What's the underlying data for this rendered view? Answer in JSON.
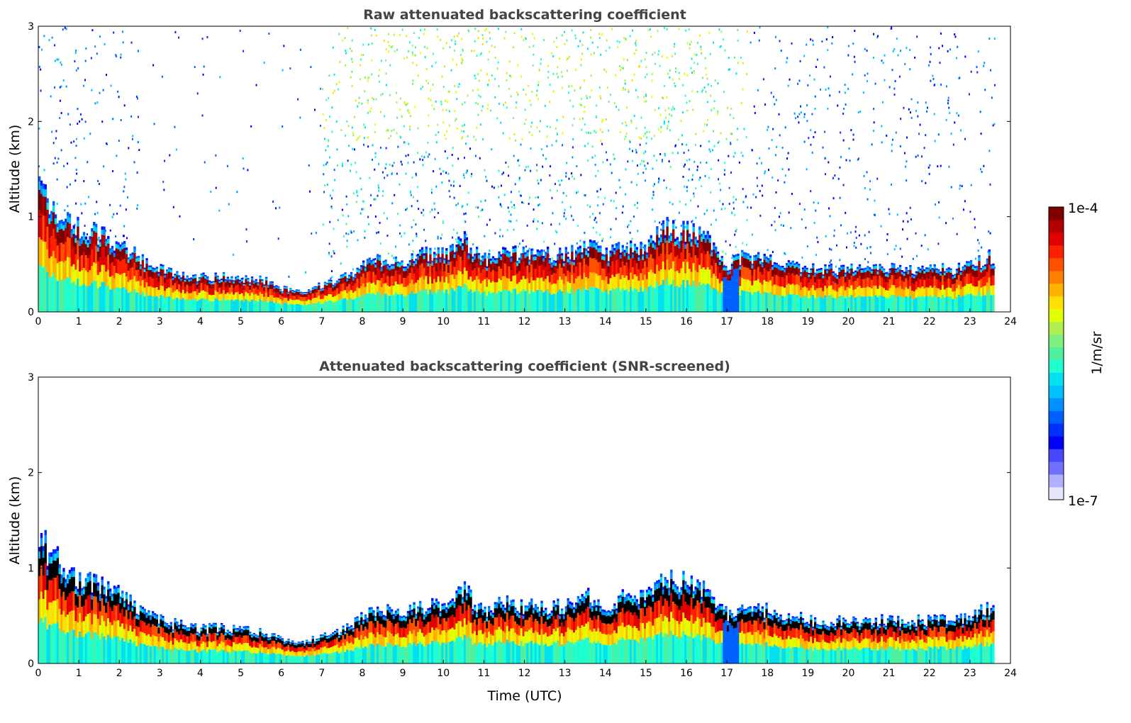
{
  "chart_data": [
    {
      "type": "heatmap",
      "title": "Raw attenuated backscattering coefficient",
      "xlabel": "",
      "ylabel": "Altitude (km)",
      "xlim": [
        0,
        24
      ],
      "ylim": [
        0,
        3
      ],
      "xticks": [
        "0",
        "1",
        "2",
        "3",
        "4",
        "5",
        "6",
        "7",
        "8",
        "9",
        "10",
        "11",
        "12",
        "13",
        "14",
        "15",
        "16",
        "17",
        "18",
        "19",
        "20",
        "21",
        "22",
        "23",
        "24"
      ],
      "yticks": [
        "0",
        "1",
        "2",
        "3"
      ],
      "screened": false
    },
    {
      "type": "heatmap",
      "title": "Attenuated backscattering coefficient (SNR-screened)",
      "xlabel": "Time (UTC)",
      "ylabel": "Altitude (km)",
      "xlim": [
        0,
        24
      ],
      "ylim": [
        0,
        3
      ],
      "xticks": [
        "0",
        "1",
        "2",
        "3",
        "4",
        "5",
        "6",
        "7",
        "8",
        "9",
        "10",
        "11",
        "12",
        "13",
        "14",
        "15",
        "16",
        "17",
        "18",
        "19",
        "20",
        "21",
        "22",
        "23",
        "24"
      ],
      "yticks": [
        "0",
        "1",
        "2",
        "3"
      ],
      "screened": true
    }
  ],
  "layer_profile": {
    "time_utc": [
      0,
      0.3,
      0.5,
      1,
      1.5,
      2,
      2.5,
      3,
      3.5,
      4,
      4.5,
      5,
      5.5,
      6,
      6.5,
      7,
      7.5,
      8,
      8.5,
      9,
      9.5,
      10,
      10.5,
      11,
      11.5,
      12,
      12.5,
      13,
      13.5,
      14,
      14.5,
      15,
      15.5,
      16,
      16.5,
      17,
      17.5,
      18,
      18.5,
      19,
      19.5,
      20,
      20.5,
      21,
      21.5,
      22,
      22.5,
      23,
      23.6
    ],
    "layer_top_km": [
      1.3,
      1.15,
      1.05,
      0.9,
      0.8,
      0.72,
      0.55,
      0.45,
      0.4,
      0.36,
      0.38,
      0.36,
      0.34,
      0.25,
      0.22,
      0.28,
      0.35,
      0.5,
      0.55,
      0.55,
      0.6,
      0.6,
      0.75,
      0.55,
      0.65,
      0.6,
      0.6,
      0.6,
      0.7,
      0.6,
      0.7,
      0.7,
      0.9,
      0.85,
      0.75,
      0.5,
      0.6,
      0.55,
      0.5,
      0.45,
      0.45,
      0.45,
      0.45,
      0.45,
      0.45,
      0.45,
      0.45,
      0.5,
      0.6
    ],
    "data_end_utc": 23.6
  },
  "colorbar": {
    "label": "1/m/sr",
    "max_label": "1e-4",
    "min_label": "1e-7",
    "colors": [
      "#e6e6fa",
      "#b0b0ff",
      "#7070ff",
      "#4848ff",
      "#0000ff",
      "#0030ff",
      "#0060ff",
      "#0090ff",
      "#00c0ff",
      "#00e0f0",
      "#20ffd0",
      "#50f0a0",
      "#80f080",
      "#b0f050",
      "#e0ff00",
      "#ffe000",
      "#ffb000",
      "#ff8000",
      "#ff5000",
      "#ff2000",
      "#e00000",
      "#b00000",
      "#800000"
    ]
  }
}
